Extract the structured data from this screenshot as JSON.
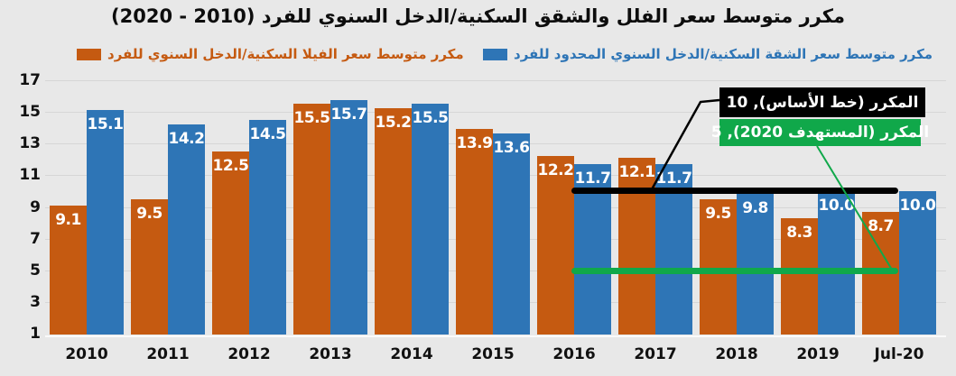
{
  "title": "مكرر متوسط سعر الفلل والشقق السكنية/الدخل السنوي للفرد (2010 - 2020)",
  "legend": {
    "villa_label": "مكرر متوسط سعر الفيلا السكنية/الدخل السنوي للفرد",
    "apartment_label": "مكرر متوسط سعر الشقة السكنية/الدخل السنوي المحدود للفرد"
  },
  "colors": {
    "villa": "#C55A11",
    "apartment": "#2E75B6",
    "baseline_line": "#000000",
    "target_line": "#10A84A",
    "background": "#E8E8E8"
  },
  "chart_data": {
    "type": "bar",
    "categories": [
      "2010",
      "2011",
      "2012",
      "2013",
      "2014",
      "2015",
      "2016",
      "2017",
      "2018",
      "2019",
      "Jul-20"
    ],
    "series": [
      {
        "key": "villa",
        "name": "مكرر متوسط سعر الفيلا السكنية/الدخل السنوي للفرد",
        "color": "#C55A11",
        "values": [
          9.1,
          9.5,
          12.5,
          15.5,
          15.2,
          13.9,
          12.2,
          12.1,
          9.5,
          8.3,
          8.7
        ]
      },
      {
        "key": "apartment",
        "name": "مكرر متوسط سعر الشقة السكنية/الدخل السنوي المحدود للفرد",
        "color": "#2E75B6",
        "values": [
          15.1,
          14.2,
          14.5,
          15.7,
          15.5,
          13.6,
          11.7,
          11.7,
          9.8,
          10.0,
          10.0
        ]
      }
    ],
    "reference_lines": [
      {
        "key": "baseline",
        "name": "المكرر (خط الأساس)",
        "value": 10,
        "label": "المكرر (خط الأساس), 10",
        "color": "#000000",
        "span_categories": [
          "2016",
          "Jul-20"
        ]
      },
      {
        "key": "target-2020",
        "name": "المكرر (المستهدف 2020)",
        "value": 5,
        "label": "المكرر (المستهدف 2020), 5",
        "color": "#10A84A",
        "span_categories": [
          "2016",
          "Jul-20"
        ]
      }
    ],
    "ylim": [
      1,
      17
    ],
    "yticks": [
      1,
      3,
      5,
      7,
      9,
      11,
      13,
      15,
      17
    ],
    "grid": true,
    "legend_position": "top",
    "value_label_format": "0.0",
    "label_color": "#FFFFFF"
  }
}
